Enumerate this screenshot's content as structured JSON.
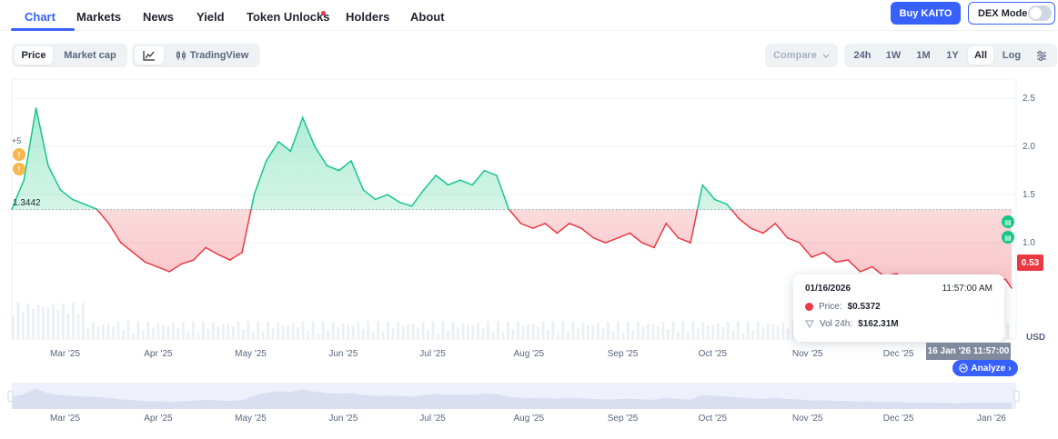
{
  "nav": {
    "tabs": [
      {
        "label": "Chart",
        "active": true
      },
      {
        "label": "Markets"
      },
      {
        "label": "News"
      },
      {
        "label": "Yield"
      },
      {
        "label": "Token Unlocks"
      },
      {
        "label": "Holders"
      },
      {
        "label": "About"
      }
    ],
    "buy_label": "Buy KAITO",
    "dex_label": "DEX Mode"
  },
  "toolbar": {
    "price_label": "Price",
    "marketcap_label": "Market cap",
    "tradingview_label": "TradingView",
    "compare_label": "Compare",
    "ranges": [
      "24h",
      "1W",
      "1M",
      "1Y",
      "All"
    ],
    "active_range": "All",
    "log_label": "Log",
    "line_icon": "line-chart-icon",
    "candle_icon": "candlestick-icon",
    "settings_icon": "settings-sliders-icon"
  },
  "colors": {
    "accent": "#3861fb",
    "up": "#16c784",
    "down": "#ea3943"
  },
  "chart_data": {
    "type": "area",
    "ylim": [
      0,
      2.7
    ],
    "yticks": [
      1.0,
      1.5,
      2.0,
      2.5
    ],
    "ytick_labels": [
      "1.0",
      "1.5",
      "2.0",
      "2.5"
    ],
    "yaxis_unit": "USD",
    "baseline": 1.3442,
    "baseline_label": "1.3442",
    "xticks": [
      "Mar '25",
      "Apr '25",
      "May '25",
      "Jun '25",
      "Jul '25",
      "Aug '25",
      "Sep '25",
      "Oct '25",
      "Nov '25",
      "Dec '25"
    ],
    "navigator_xticks": [
      "Mar '25",
      "Apr '25",
      "May '25",
      "Jun '25",
      "Jul '25",
      "Aug '25",
      "Sep '25",
      "Oct '25",
      "Nov '25",
      "Dec '25",
      "Jan '26"
    ],
    "x": [
      "2025-02-20",
      "2025-02-24",
      "2025-02-28",
      "2025-03-04",
      "2025-03-08",
      "2025-03-12",
      "2025-03-16",
      "2025-03-20",
      "2025-03-24",
      "2025-03-28",
      "2025-04-01",
      "2025-04-05",
      "2025-04-09",
      "2025-04-13",
      "2025-04-17",
      "2025-04-21",
      "2025-04-25",
      "2025-04-29",
      "2025-05-03",
      "2025-05-07",
      "2025-05-11",
      "2025-05-15",
      "2025-05-19",
      "2025-05-23",
      "2025-05-27",
      "2025-05-31",
      "2025-06-04",
      "2025-06-08",
      "2025-06-12",
      "2025-06-16",
      "2025-06-20",
      "2025-06-24",
      "2025-06-28",
      "2025-07-02",
      "2025-07-06",
      "2025-07-10",
      "2025-07-14",
      "2025-07-18",
      "2025-07-22",
      "2025-07-26",
      "2025-07-30",
      "2025-08-03",
      "2025-08-07",
      "2025-08-11",
      "2025-08-15",
      "2025-08-19",
      "2025-08-23",
      "2025-08-27",
      "2025-08-31",
      "2025-09-04",
      "2025-09-08",
      "2025-09-12",
      "2025-09-16",
      "2025-09-20",
      "2025-09-24",
      "2025-09-28",
      "2025-10-02",
      "2025-10-06",
      "2025-10-10",
      "2025-10-14",
      "2025-10-18",
      "2025-10-22",
      "2025-10-26",
      "2025-10-30",
      "2025-11-03",
      "2025-11-07",
      "2025-11-11",
      "2025-11-15",
      "2025-11-19",
      "2025-11-23",
      "2025-11-27",
      "2025-12-01",
      "2025-12-05",
      "2025-12-09",
      "2025-12-13",
      "2025-12-17",
      "2025-12-21",
      "2025-12-25",
      "2025-12-29",
      "2026-01-02",
      "2026-01-06",
      "2026-01-10",
      "2026-01-14",
      "2026-01-16"
    ],
    "series": [
      {
        "values": [
          1.35,
          1.65,
          2.4,
          1.8,
          1.55,
          1.45,
          1.4,
          1.35,
          1.2,
          1.0,
          0.9,
          0.8,
          0.75,
          0.7,
          0.78,
          0.82,
          0.95,
          0.88,
          0.82,
          0.9,
          1.5,
          1.85,
          2.05,
          1.95,
          2.3,
          2.0,
          1.8,
          1.75,
          1.85,
          1.55,
          1.45,
          1.5,
          1.42,
          1.38,
          1.55,
          1.7,
          1.6,
          1.65,
          1.6,
          1.75,
          1.7,
          1.35,
          1.2,
          1.15,
          1.2,
          1.1,
          1.2,
          1.15,
          1.05,
          1.0,
          1.05,
          1.1,
          1.0,
          0.95,
          1.2,
          1.05,
          1.0,
          1.6,
          1.45,
          1.4,
          1.25,
          1.15,
          1.1,
          1.2,
          1.05,
          1.0,
          0.85,
          0.9,
          0.8,
          0.82,
          0.7,
          0.75,
          0.65,
          0.68,
          0.6,
          0.63,
          0.58,
          0.53,
          0.52,
          0.56,
          0.54,
          0.58,
          0.62,
          0.53
        ]
      }
    ]
  },
  "tooltip": {
    "date": "01/16/2026",
    "time": "11:57:00 AM",
    "price_label": "Price:",
    "price_value": "$0.5372",
    "vol_label": "Vol 24h:",
    "vol_value": "$162.31M"
  },
  "crosshair_label": "16 Jan '26 11:57:00",
  "analyze_label": "Analyze",
  "price_tag": "0.53",
  "events_label": "+5"
}
